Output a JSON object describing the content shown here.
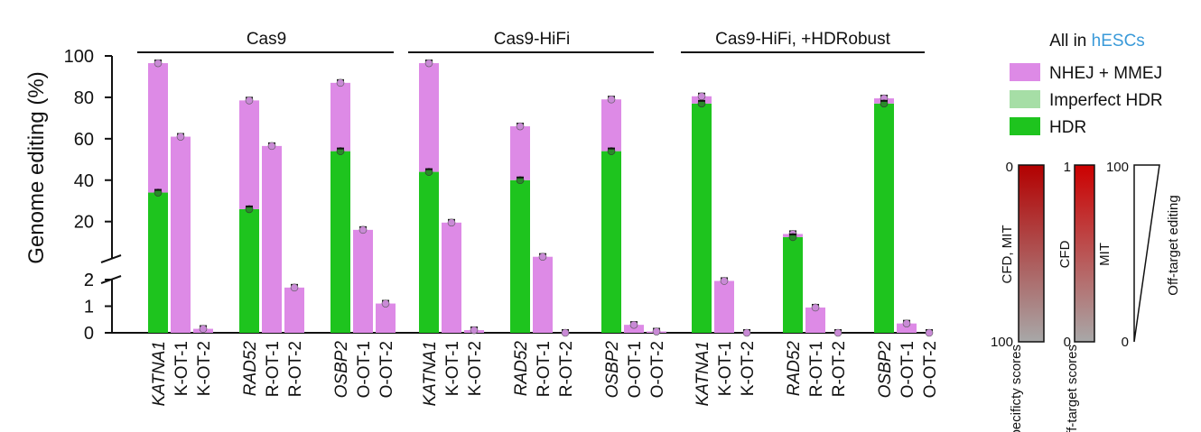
{
  "chart_data": {
    "type": "bar",
    "stacked": true,
    "broken_axis": true,
    "ylabel": "Genome editing (%)",
    "y_upper_ticks": [
      "2",
      "20",
      "40",
      "60",
      "80",
      "100"
    ],
    "y_lower_ticks": [
      "0",
      "1",
      "2"
    ],
    "y_upper_range": [
      2,
      100
    ],
    "y_lower_range": [
      0,
      2
    ],
    "groups": [
      {
        "label": "Cas9",
        "categories": [
          "KATNA1",
          "K-OT-1",
          "K-OT-2",
          "RAD52",
          "R-OT-1",
          "R-OT-2",
          "OSBP2",
          "O-OT-1",
          "O-OT-2"
        ]
      },
      {
        "label": "Cas9-HiFi",
        "categories": [
          "KATNA1",
          "K-OT-1",
          "K-OT-2",
          "RAD52",
          "R-OT-1",
          "R-OT-2",
          "OSBP2",
          "O-OT-1",
          "O-OT-2"
        ]
      },
      {
        "label": "Cas9-HiFi, +HDRobust",
        "categories": [
          "KATNA1",
          "K-OT-1",
          "K-OT-2",
          "RAD52",
          "R-OT-1",
          "R-OT-2",
          "OSBP2",
          "O-OT-1",
          "O-OT-2"
        ]
      }
    ],
    "italic_categories": [
      "KATNA1",
      "RAD52",
      "OSBP2"
    ],
    "series": [
      {
        "name": "HDR",
        "color": "#1ec41e",
        "values": [
          34,
          0,
          0,
          26,
          0,
          0,
          54,
          0,
          0,
          44,
          0,
          0,
          40,
          0,
          0,
          54,
          0,
          0,
          77,
          0,
          0,
          12.5,
          0,
          0,
          77,
          0,
          0
        ]
      },
      {
        "name": "Imperfect HDR",
        "color": "#a6dea6",
        "values": [
          0,
          0,
          0,
          0,
          0,
          0,
          0,
          0,
          0,
          0,
          0,
          0,
          0,
          0,
          0,
          0,
          0,
          0,
          0,
          0,
          0,
          0,
          0,
          0,
          0,
          0,
          0
        ]
      },
      {
        "name": "NHEJ + MMEJ",
        "color": "#dd8ae6",
        "values": [
          62.5,
          61,
          0.15,
          52.5,
          56.5,
          1.7,
          33,
          16,
          1.1,
          52.5,
          19.5,
          0.1,
          26,
          3,
          0,
          25,
          0.3,
          0.05,
          3.5,
          1.95,
          0,
          1.5,
          0.95,
          0,
          2.5,
          0.35,
          0
        ]
      }
    ],
    "legend": {
      "title_prefix": "All in",
      "title_highlight": "hESCs",
      "position": "top-right"
    },
    "colorbars": [
      {
        "label": "CFD, MIT",
        "top": "0",
        "bottom": "100",
        "caption": "Specificty scores",
        "top_color": "#b30000",
        "bottom_color": "#a8a8a8"
      },
      {
        "label_left": "CFD",
        "label_right": "MIT",
        "top": "1",
        "bottom": "0",
        "caption": "Off-target scores",
        "top_color": "#cc0000",
        "bottom_color": "#a8a8a8"
      }
    ],
    "wedge": {
      "top": "100",
      "bottom": "0",
      "label": "Off-target editing"
    }
  }
}
